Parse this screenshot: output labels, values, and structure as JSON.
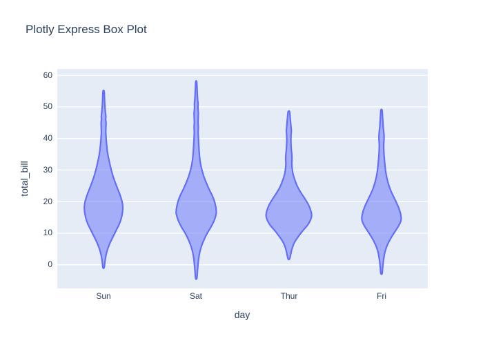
{
  "title": "Plotly Express Box Plot",
  "colors": {
    "paper_bg": "#ffffff",
    "plot_bg": "#e5ecf6",
    "grid": "#ffffff",
    "title_text": "#2a3f5f",
    "axis_text": "#2a3f5f",
    "violin_line": "#636efa",
    "violin_fill": "rgba(99,110,250,0.5)"
  },
  "chart_data": {
    "type": "violin",
    "title": "Plotly Express Box Plot",
    "xlabel": "day",
    "ylabel": "total_bill",
    "categories": [
      "Sun",
      "Sat",
      "Thur",
      "Fri"
    ],
    "yticks": [
      0,
      10,
      20,
      30,
      40,
      50,
      60
    ],
    "ylim": [
      -7.5,
      62
    ],
    "grid": true,
    "legend": false,
    "violins": [
      {
        "day": "Sun",
        "span_min": -0.9,
        "span_max": 55,
        "peak_value": 18.5,
        "profile": [
          [
            -0.9,
            0.9
          ],
          [
            1,
            2
          ],
          [
            3,
            3.5
          ],
          [
            5,
            6
          ],
          [
            7,
            9.5
          ],
          [
            9,
            14
          ],
          [
            11,
            18.5
          ],
          [
            13,
            23
          ],
          [
            15,
            26
          ],
          [
            17,
            27.6
          ],
          [
            18.5,
            27.8
          ],
          [
            20,
            26.8
          ],
          [
            22,
            24
          ],
          [
            24,
            20.5
          ],
          [
            26,
            17
          ],
          [
            28,
            13.8
          ],
          [
            30,
            11.2
          ],
          [
            32,
            9
          ],
          [
            34,
            7
          ],
          [
            36,
            5.5
          ],
          [
            38,
            4.5
          ],
          [
            40,
            3.7
          ],
          [
            42,
            3.2
          ],
          [
            43.5,
            3.4
          ],
          [
            45,
            3.6
          ],
          [
            46,
            3
          ],
          [
            47,
            3.3
          ],
          [
            48,
            2.8
          ],
          [
            49.5,
            2.2
          ],
          [
            51,
            1.7
          ],
          [
            53,
            1.3
          ],
          [
            55,
            0.8
          ]
        ]
      },
      {
        "day": "Sat",
        "span_min": -4.3,
        "span_max": 58,
        "peak_value": 16.5,
        "profile": [
          [
            -4.3,
            0.9
          ],
          [
            -2,
            1.8
          ],
          [
            0,
            2.6
          ],
          [
            2,
            3.6
          ],
          [
            4,
            5.2
          ],
          [
            6,
            7.8
          ],
          [
            8,
            11.5
          ],
          [
            10,
            16
          ],
          [
            12,
            21.5
          ],
          [
            14,
            26
          ],
          [
            16,
            28.8
          ],
          [
            17,
            29
          ],
          [
            18,
            28.5
          ],
          [
            20,
            26.5
          ],
          [
            22,
            23
          ],
          [
            24,
            18.5
          ],
          [
            26,
            14.5
          ],
          [
            28,
            11
          ],
          [
            30,
            8.3
          ],
          [
            32,
            6.2
          ],
          [
            34,
            5
          ],
          [
            36,
            4.2
          ],
          [
            37.5,
            3.8
          ],
          [
            39,
            3.4
          ],
          [
            40.5,
            3.1
          ],
          [
            42,
            2.8
          ],
          [
            43.5,
            3.1
          ],
          [
            45,
            2.7
          ],
          [
            46.5,
            2.9
          ],
          [
            48,
            3.1
          ],
          [
            49.5,
            2.5
          ],
          [
            51,
            2.6
          ],
          [
            52.5,
            2
          ],
          [
            54,
            1.6
          ],
          [
            56,
            1.2
          ],
          [
            58,
            0.7
          ]
        ]
      },
      {
        "day": "Thur",
        "span_min": 1.8,
        "span_max": 48.5,
        "peak_value": 15,
        "profile": [
          [
            1.8,
            1
          ],
          [
            3,
            2.4
          ],
          [
            5,
            4.5
          ],
          [
            7,
            8
          ],
          [
            9,
            14
          ],
          [
            11,
            21
          ],
          [
            12.5,
            27
          ],
          [
            14,
            31
          ],
          [
            15.5,
            33
          ],
          [
            17,
            32
          ],
          [
            19,
            28.5
          ],
          [
            21,
            23
          ],
          [
            23,
            17
          ],
          [
            25,
            12
          ],
          [
            27,
            8.5
          ],
          [
            29,
            5.8
          ],
          [
            30.5,
            4.8
          ],
          [
            32,
            4.3
          ],
          [
            33.5,
            4.6
          ],
          [
            35,
            4.3
          ],
          [
            36.5,
            3.6
          ],
          [
            38,
            3.2
          ],
          [
            39.5,
            3
          ],
          [
            41,
            3.2
          ],
          [
            42.5,
            3.6
          ],
          [
            44,
            3
          ],
          [
            45.5,
            2.4
          ],
          [
            47,
            1.8
          ],
          [
            48.5,
            1
          ]
        ]
      },
      {
        "day": "Fri",
        "span_min": -2.8,
        "span_max": 49,
        "peak_value": 14.5,
        "profile": [
          [
            -2.8,
            0.9
          ],
          [
            -1,
            1.7
          ],
          [
            0.5,
            2.4
          ],
          [
            2,
            3.3
          ],
          [
            4,
            5
          ],
          [
            6,
            8
          ],
          [
            8,
            12.5
          ],
          [
            10,
            18
          ],
          [
            12,
            24
          ],
          [
            13.5,
            27.5
          ],
          [
            14.5,
            28.5
          ],
          [
            16,
            27.8
          ],
          [
            18,
            25
          ],
          [
            20,
            21
          ],
          [
            22,
            16.5
          ],
          [
            24,
            12.5
          ],
          [
            26,
            9.5
          ],
          [
            28,
            7.3
          ],
          [
            30,
            5.8
          ],
          [
            32,
            4.8
          ],
          [
            34,
            4
          ],
          [
            36,
            3.4
          ],
          [
            38,
            3.2
          ],
          [
            39.5,
            3.6
          ],
          [
            41,
            3.7
          ],
          [
            42.5,
            3
          ],
          [
            44,
            2.4
          ],
          [
            46,
            1.8
          ],
          [
            47.5,
            1.4
          ],
          [
            49,
            0.8
          ]
        ]
      }
    ]
  }
}
